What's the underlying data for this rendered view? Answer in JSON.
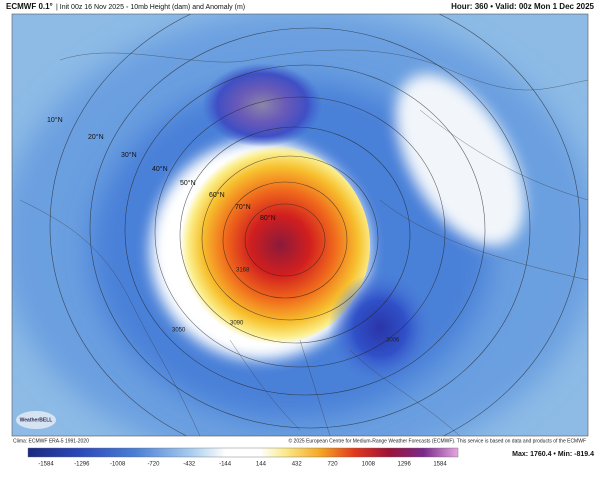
{
  "header": {
    "model": "ECMWF 0.1°",
    "description": "| Init 00z 16 Nov 2025 ◦ 10mb Height (dam) and Anomaly (m)",
    "valid": "Hour: 360 • Valid: 00z Mon 1 Dec 2025"
  },
  "map": {
    "latitude_labels": [
      "10°N",
      "20°N",
      "30°N",
      "40°N",
      "50°N",
      "60°N",
      "70°N",
      "80°N"
    ],
    "contour_labels": [
      "3050",
      "3006",
      "3168",
      "3090"
    ],
    "watermark": "WeatherBELL"
  },
  "footer": {
    "climatology": "Clima: ECMWF ERA-5 1991-2020",
    "copyright": "© 2025 European Centre for Medium-Range Weather Forecasts (ECMWF). This service is based on data and products of the ECMWF"
  },
  "colorbar": {
    "ticks": [
      "-1584",
      "-1296",
      "-1008",
      "-720",
      "-432",
      "-144",
      "144",
      "432",
      "720",
      "1008",
      "1296",
      "1584"
    ],
    "stats": "Max: 1760.4 • Min: -819.4"
  }
}
